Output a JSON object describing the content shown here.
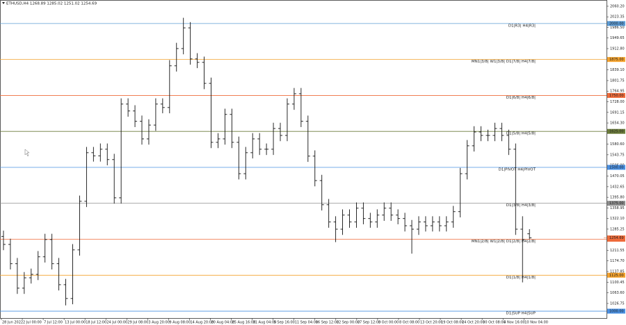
{
  "chart_data": {
    "type": "ohlc",
    "title": "ETHUSD,H4  1268.89 1285.02 1251.02 1254.69",
    "x_labels": [
      "28 Jun 2022",
      "2 Jul 00:00",
      "7 Jul 12:00",
      "13 Jul 00:00",
      "18 Jul 12:00",
      "24 Jul 00:00",
      "29 Jul 08:00",
      "3 Aug 20:00",
      "9 Aug 08:00",
      "14 Aug 20:00",
      "20 Aug 04:00",
      "25 Aug 16:00",
      "31 Aug 04:00",
      "5 Sep 16:00",
      "11 Sep 04:00",
      "16 Sep 12:00",
      "22 Sep 00:00",
      "27 Sep 12:00",
      "3 Oct 00:00",
      "8 Oct 08:00",
      "13 Oct 20:00",
      "19 Oct 08:00",
      "24 Oct 20:00",
      "30 Oct 08:00",
      "4 Nov 16:00",
      "10 Nov 04:00"
    ],
    "color": "#111111",
    "open": [
      1260,
      1232,
      1165,
      1080,
      1116,
      1128,
      1189,
      1249,
      1165,
      1092,
      1044,
      1213,
      1382,
      1551,
      1540,
      1563,
      1527,
      1394,
      1720,
      1696,
      1660,
      1599,
      1647,
      1720,
      1708,
      1853,
      1913,
      1985,
      1877,
      1865,
      1792,
      1587,
      1599,
      1684,
      1587,
      1478,
      1551,
      1599,
      1563,
      1563,
      1635,
      1611,
      1720,
      1756,
      1660,
      1539,
      1454,
      1370,
      1310,
      1285,
      1334,
      1310,
      1358,
      1322,
      1310,
      1334,
      1358,
      1334,
      1322,
      1297,
      1285,
      1310,
      1297,
      1310,
      1297,
      1310,
      1346,
      1478,
      1575,
      1623,
      1611,
      1611,
      1635,
      1611,
      1563,
      1285,
      1268.89
    ],
    "high": [
      1280,
      1252,
      1185,
      1136,
      1148,
      1209,
      1269,
      1269,
      1185,
      1112,
      1233,
      1402,
      1571,
      1571,
      1583,
      1583,
      1547,
      1740,
      1740,
      1716,
      1680,
      1667,
      1740,
      1740,
      1873,
      1933,
      2020,
      2005,
      1897,
      1885,
      1812,
      1619,
      1704,
      1704,
      1607,
      1571,
      1619,
      1619,
      1583,
      1655,
      1655,
      1740,
      1776,
      1776,
      1680,
      1559,
      1474,
      1390,
      1330,
      1354,
      1354,
      1378,
      1378,
      1342,
      1354,
      1378,
      1378,
      1354,
      1342,
      1317,
      1330,
      1330,
      1330,
      1330,
      1330,
      1366,
      1498,
      1595,
      1643,
      1643,
      1631,
      1655,
      1655,
      1631,
      1583,
      1330,
      1285.02
    ],
    "low": [
      1212,
      1145,
      1060,
      1060,
      1096,
      1108,
      1169,
      1145,
      1072,
      1020,
      1024,
      1193,
      1362,
      1520,
      1520,
      1507,
      1374,
      1374,
      1676,
      1640,
      1579,
      1579,
      1627,
      1688,
      1688,
      1833,
      1893,
      1857,
      1845,
      1772,
      1567,
      1567,
      1579,
      1567,
      1458,
      1458,
      1531,
      1543,
      1543,
      1543,
      1591,
      1591,
      1700,
      1640,
      1519,
      1434,
      1350,
      1290,
      1240,
      1265,
      1290,
      1290,
      1302,
      1290,
      1290,
      1314,
      1314,
      1302,
      1277,
      1200,
      1265,
      1277,
      1277,
      1277,
      1277,
      1290,
      1326,
      1458,
      1555,
      1591,
      1591,
      1591,
      1591,
      1543,
      1265,
      1100,
      1251.02
    ],
    "close": [
      1232,
      1165,
      1080,
      1116,
      1128,
      1189,
      1249,
      1165,
      1092,
      1044,
      1213,
      1382,
      1551,
      1540,
      1563,
      1527,
      1394,
      1720,
      1696,
      1660,
      1599,
      1647,
      1720,
      1708,
      1853,
      1913,
      1985,
      1877,
      1865,
      1792,
      1587,
      1599,
      1684,
      1587,
      1478,
      1551,
      1599,
      1563,
      1563,
      1635,
      1611,
      1720,
      1756,
      1660,
      1539,
      1454,
      1370,
      1310,
      1285,
      1334,
      1310,
      1358,
      1322,
      1310,
      1334,
      1358,
      1334,
      1322,
      1297,
      1285,
      1310,
      1297,
      1310,
      1297,
      1310,
      1346,
      1478,
      1575,
      1623,
      1611,
      1611,
      1635,
      1611,
      1563,
      1285,
      1249,
      1254.69
    ],
    "ylim": [
      976,
      2077
    ],
    "yticks": [
      {
        "value": 2060.2,
        "label": "2060.20"
      },
      {
        "value": 2023.35,
        "label": "2023.35"
      },
      {
        "value": 1986.5,
        "label": "1986.50"
      },
      {
        "value": 1949.65,
        "label": "1949.65"
      },
      {
        "value": 1912.8,
        "label": "1912.80"
      },
      {
        "value": 1839.1,
        "label": "1839.10"
      },
      {
        "value": 1801.75,
        "label": "1801.75"
      },
      {
        "value": 1764.95,
        "label": "1764.95"
      },
      {
        "value": 1728,
        "label": "1728.00"
      },
      {
        "value": 1691.15,
        "label": "1691.15"
      },
      {
        "value": 1654.3,
        "label": "1654.30"
      },
      {
        "value": 1580.6,
        "label": "1580.60"
      },
      {
        "value": 1543.75,
        "label": "1543.75"
      },
      {
        "value": 1506.9,
        "label": "1506.90"
      },
      {
        "value": 1470.05,
        "label": "1470.05"
      },
      {
        "value": 1432.65,
        "label": "1432.65"
      },
      {
        "value": 1395.8,
        "label": "1395.80"
      },
      {
        "value": 1358.95,
        "label": "1358.95"
      },
      {
        "value": 1322.1,
        "label": "1322.10"
      },
      {
        "value": 1285.25,
        "label": "1285.25"
      },
      {
        "value": 1211.55,
        "label": "1211.55"
      },
      {
        "value": 1174.7,
        "label": "1174.70"
      },
      {
        "value": 1137.85,
        "label": "1137.85"
      },
      {
        "value": 1100.45,
        "label": "1100.45"
      },
      {
        "value": 1063.6,
        "label": "1063.60"
      },
      {
        "value": 1026.75,
        "label": "1026.75"
      }
    ],
    "levels": [
      {
        "name": "D1|R3| H4|R3|",
        "price": {
          "value": 2000,
          "label": "2000.00"
        },
        "color": "#5b9bd5"
      },
      {
        "name": "MN1|3/8| W1|3/8| D1|7/8| H4|7/8|",
        "price": {
          "value": 1875,
          "label": "1875.00"
        },
        "color": "#f4a22d"
      },
      {
        "name": "D1|6/8| H4|6/8|",
        "price": {
          "value": 1750,
          "label": "1750.00"
        },
        "color": "#ef6b3a"
      },
      {
        "name": "D1|5/8| H4|5/8|",
        "price": {
          "value": 1625,
          "label": "1625.00"
        },
        "color": "#6b7b3a"
      },
      {
        "name": "D1|PIVOT H4|PIVOT",
        "price": {
          "value": 1500,
          "label": "1500.00"
        },
        "color": "#4a90e2"
      },
      {
        "name": "D1|3/8| H4|3/8|",
        "price": {
          "value": 1375,
          "label": "1375.00"
        },
        "color": "#8c8c8c"
      },
      {
        "name": "MN1|2/8| W1|2/8| D1|2/8| H4|2/8|",
        "price": {
          "value": 1250,
          "label": "1250.00"
        },
        "color": "#ef6b3a"
      },
      {
        "name": "D1|1/8| H4|1/8|",
        "price": {
          "value": 1125,
          "label": "1125.00"
        },
        "color": "#f4a22d"
      },
      {
        "name": "D1|SUP H4|SUP",
        "price": {
          "value": 1000,
          "label": "1000.00"
        },
        "color": "#4a90e2"
      }
    ],
    "last_price": {
      "value": 1254.69,
      "label": "1254.69"
    }
  }
}
